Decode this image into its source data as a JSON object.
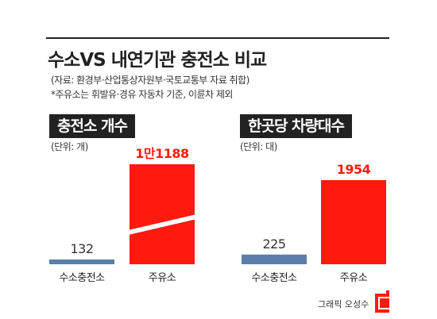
{
  "header": {
    "title": "수소VS 내연기관 충전소 비교",
    "source": "(자료: 환경부·산업통상자원부·국토교통부 자료 취합)",
    "note": "*주유소는 휘발유·경유 자동차 기준, 이륜차 제외"
  },
  "footer": {
    "credit": "그래픽 오성수",
    "logo_icon": "publisher-logo-icon"
  },
  "colors": {
    "hydrogen": "#5b7fa8",
    "gas": "#ff1a0f",
    "text": "#222222"
  },
  "chart_data": [
    {
      "type": "bar",
      "title": "충전소 개수",
      "unit": "(단위: 개)",
      "categories": [
        "수소충전소",
        "주유소"
      ],
      "values": [
        132,
        11188
      ],
      "value_labels": [
        "132",
        "1만1188"
      ],
      "axis_break": true
    },
    {
      "type": "bar",
      "title": "한곳당 차량대수",
      "unit": "(단위: 대)",
      "categories": [
        "수소충전소",
        "주유소"
      ],
      "values": [
        225,
        1954
      ],
      "value_labels": [
        "225",
        "1954"
      ],
      "axis_break": false
    }
  ]
}
